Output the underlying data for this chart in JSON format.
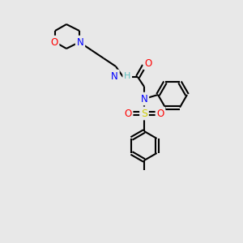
{
  "background_color": "#e8e8e8",
  "bond_color": "#000000",
  "atom_colors": {
    "O": "#ff0000",
    "N": "#0000ff",
    "S": "#cccc00",
    "H": "#5fbfbf",
    "C": "#000000"
  },
  "figsize": [
    3.0,
    3.0
  ],
  "dpi": 100
}
